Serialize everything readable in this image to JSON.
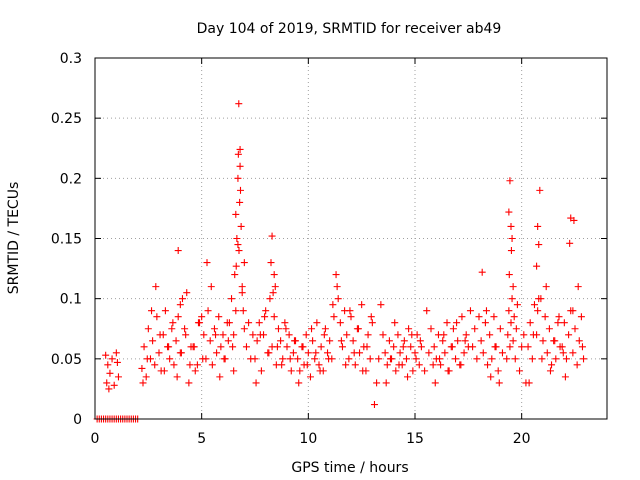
{
  "chart_data": {
    "type": "scatter",
    "title": "Day 104 of 2019, SRMTID for receiver ab49",
    "xlabel": "GPS time / hours",
    "ylabel": "SRMTID / TECUs",
    "xlim": [
      0,
      24
    ],
    "ylim": [
      0,
      0.3
    ],
    "x_ticks": [
      0,
      5,
      10,
      15,
      20
    ],
    "y_ticks": [
      0,
      0.05,
      0.1,
      0.15,
      0.2,
      0.25,
      0.3
    ],
    "grid": true,
    "marker": "+",
    "series": [
      {
        "name": "SRMTID",
        "color": "#ff0000",
        "x": [
          0.1,
          0.2,
          0.3,
          0.4,
          0.5,
          0.6,
          0.7,
          0.8,
          0.9,
          1.0,
          1.1,
          1.2,
          1.3,
          1.4,
          1.5,
          1.6,
          1.7,
          1.8,
          1.9,
          2.0,
          0.5,
          0.55,
          0.6,
          0.65,
          0.7,
          0.8,
          0.9,
          1.0,
          1.05,
          1.1,
          2.2,
          2.3,
          2.4,
          2.5,
          2.6,
          2.7,
          2.8,
          2.9,
          3.0,
          3.1,
          3.2,
          3.3,
          3.4,
          3.5,
          3.6,
          3.7,
          3.8,
          3.9,
          4.0,
          4.1,
          2.25,
          2.45,
          2.65,
          2.85,
          3.05,
          3.25,
          3.45,
          3.65,
          3.85,
          4.05,
          4.25,
          4.45,
          4.65,
          4.85,
          5.05,
          3.9,
          4.0,
          4.2,
          4.3,
          4.5,
          4.7,
          4.9,
          5.1,
          5.2,
          5.3,
          5.4,
          5.5,
          5.6,
          5.7,
          5.8,
          5.9,
          6.0,
          6.1,
          6.2,
          4.4,
          4.6,
          4.8,
          5.0,
          5.25,
          5.45,
          5.65,
          5.85,
          6.05,
          6.25,
          6.3,
          6.4,
          6.5,
          6.55,
          6.6,
          6.65,
          6.7,
          6.72,
          6.75,
          6.78,
          6.8,
          6.85,
          6.9,
          6.95,
          7.0,
          7.1,
          7.2,
          7.3,
          7.4,
          6.5,
          6.6,
          6.7,
          6.8,
          6.9,
          7.0,
          6.45,
          6.62,
          6.74,
          6.82,
          7.5,
          7.6,
          7.7,
          7.8,
          7.9,
          8.0,
          8.1,
          8.2,
          8.3,
          8.4,
          8.5,
          8.6,
          8.7,
          8.8,
          8.9,
          9.0,
          9.1,
          9.2,
          9.3,
          9.4,
          7.55,
          7.75,
          7.95,
          8.15,
          8.35,
          8.55,
          8.75,
          8.95,
          9.15,
          9.35,
          8.3,
          8.4,
          8.25,
          8.45,
          9.5,
          9.6,
          9.7,
          9.8,
          9.9,
          10.0,
          10.1,
          10.2,
          10.3,
          10.4,
          10.5,
          10.6,
          10.7,
          10.8,
          10.9,
          11.0,
          11.1,
          11.2,
          9.55,
          9.75,
          9.95,
          10.15,
          10.35,
          10.55,
          10.75,
          10.95,
          11.15,
          11.3,
          11.4,
          11.5,
          11.6,
          11.7,
          11.8,
          11.9,
          12.0,
          12.1,
          12.2,
          12.3,
          12.4,
          12.5,
          12.6,
          12.7,
          12.8,
          12.9,
          13.0,
          11.35,
          11.55,
          11.75,
          11.95,
          12.15,
          12.35,
          12.55,
          12.75,
          12.95,
          13.1,
          13.2,
          13.3,
          13.4,
          13.5,
          13.6,
          13.7,
          13.8,
          13.9,
          14.0,
          14.1,
          14.2,
          14.3,
          14.4,
          14.5,
          14.6,
          14.7,
          14.8,
          14.9,
          15.0,
          15.1,
          15.2,
          15.3,
          13.65,
          13.85,
          14.05,
          14.25,
          14.45,
          14.65,
          14.85,
          15.05,
          15.25,
          15.45,
          15.55,
          15.65,
          15.75,
          15.85,
          15.9,
          16.0,
          16.1,
          16.2,
          16.3,
          16.4,
          16.5,
          16.6,
          16.7,
          16.8,
          16.9,
          17.0,
          17.1,
          17.2,
          17.3,
          17.4,
          17.5,
          15.95,
          16.15,
          16.35,
          16.55,
          16.75,
          16.95,
          17.15,
          17.35,
          17.6,
          17.7,
          17.8,
          17.9,
          18.0,
          18.1,
          18.2,
          18.3,
          18.4,
          18.5,
          18.6,
          18.7,
          18.8,
          18.9,
          19.0,
          19.1,
          18.15,
          18.35,
          18.55,
          18.75,
          18.95,
          19.3,
          19.35,
          19.4,
          19.45,
          19.5,
          19.55,
          19.6,
          19.65,
          19.7,
          19.75,
          19.8,
          19.9,
          20.0,
          20.1,
          20.2,
          19.4,
          19.45,
          19.5,
          19.55,
          19.6,
          19.42,
          19.52,
          20.3,
          20.4,
          20.5,
          20.6,
          20.7,
          20.75,
          20.8,
          20.85,
          20.9,
          21.0,
          21.1,
          21.2,
          21.3,
          21.4,
          21.5,
          21.6,
          21.7,
          21.8,
          20.35,
          20.55,
          20.75,
          20.95,
          21.15,
          21.35,
          21.55,
          21.75,
          21.95,
          20.7,
          20.8,
          21.9,
          22.0,
          22.1,
          22.2,
          22.3,
          22.4,
          22.5,
          22.6,
          22.7,
          22.8,
          22.9,
          22.05,
          22.25,
          22.45,
          22.65,
          22.85,
          22.3,
          22.4
        ],
        "y": [
          0.0,
          0.0,
          0.0,
          0.0,
          0.0,
          0.0,
          0.0,
          0.0,
          0.0,
          0.0,
          0.0,
          0.0,
          0.0,
          0.0,
          0.0,
          0.0,
          0.0,
          0.0,
          0.0,
          0.0,
          0.053,
          0.03,
          0.045,
          0.025,
          0.038,
          0.05,
          0.028,
          0.055,
          0.047,
          0.035,
          0.042,
          0.06,
          0.035,
          0.075,
          0.05,
          0.065,
          0.045,
          0.085,
          0.055,
          0.04,
          0.07,
          0.09,
          0.06,
          0.05,
          0.075,
          0.045,
          0.065,
          0.085,
          0.055,
          0.1,
          0.03,
          0.05,
          0.09,
          0.11,
          0.07,
          0.04,
          0.06,
          0.08,
          0.035,
          0.055,
          0.07,
          0.045,
          0.06,
          0.08,
          0.05,
          0.14,
          0.095,
          0.075,
          0.105,
          0.06,
          0.04,
          0.08,
          0.07,
          0.05,
          0.09,
          0.065,
          0.045,
          0.075,
          0.055,
          0.085,
          0.06,
          0.07,
          0.05,
          0.08,
          0.03,
          0.06,
          0.045,
          0.085,
          0.13,
          0.11,
          0.07,
          0.035,
          0.05,
          0.065,
          0.08,
          0.1,
          0.07,
          0.12,
          0.17,
          0.15,
          0.2,
          0.22,
          0.14,
          0.18,
          0.21,
          0.16,
          0.11,
          0.09,
          0.13,
          0.06,
          0.08,
          0.05,
          0.07,
          0.04,
          0.09,
          0.145,
          0.224,
          0.105,
          0.075,
          0.06,
          0.127,
          0.262,
          0.19,
          0.05,
          0.065,
          0.08,
          0.04,
          0.07,
          0.09,
          0.055,
          0.1,
          0.06,
          0.085,
          0.045,
          0.075,
          0.065,
          0.05,
          0.08,
          0.06,
          0.07,
          0.04,
          0.055,
          0.065,
          0.03,
          0.07,
          0.085,
          0.055,
          0.105,
          0.06,
          0.045,
          0.075,
          0.05,
          0.065,
          0.152,
          0.12,
          0.13,
          0.11,
          0.05,
          0.04,
          0.06,
          0.045,
          0.07,
          0.055,
          0.035,
          0.065,
          0.05,
          0.08,
          0.045,
          0.06,
          0.04,
          0.075,
          0.055,
          0.065,
          0.05,
          0.085,
          0.03,
          0.06,
          0.045,
          0.075,
          0.055,
          0.04,
          0.07,
          0.05,
          0.095,
          0.12,
          0.1,
          0.08,
          0.06,
          0.09,
          0.07,
          0.05,
          0.085,
          0.065,
          0.045,
          0.075,
          0.055,
          0.095,
          0.06,
          0.04,
          0.07,
          0.05,
          0.08,
          0.11,
          0.065,
          0.045,
          0.09,
          0.055,
          0.075,
          0.04,
          0.06,
          0.085,
          0.012,
          0.03,
          0.05,
          0.095,
          0.07,
          0.055,
          0.045,
          0.065,
          0.05,
          0.06,
          0.04,
          0.07,
          0.055,
          0.045,
          0.065,
          0.05,
          0.075,
          0.06,
          0.04,
          0.055,
          0.07,
          0.045,
          0.06,
          0.03,
          0.05,
          0.08,
          0.045,
          0.06,
          0.035,
          0.07,
          0.05,
          0.065,
          0.04,
          0.09,
          0.055,
          0.075,
          0.045,
          0.06,
          0.05,
          0.07,
          0.045,
          0.065,
          0.055,
          0.08,
          0.04,
          0.06,
          0.075,
          0.05,
          0.065,
          0.045,
          0.085,
          0.055,
          0.07,
          0.06,
          0.03,
          0.05,
          0.07,
          0.04,
          0.06,
          0.08,
          0.045,
          0.065,
          0.09,
          0.06,
          0.075,
          0.05,
          0.085,
          0.065,
          0.055,
          0.08,
          0.045,
          0.07,
          0.05,
          0.085,
          0.06,
          0.04,
          0.075,
          0.055,
          0.122,
          0.09,
          0.035,
          0.06,
          0.03,
          0.05,
          0.07,
          0.09,
          0.06,
          0.08,
          0.1,
          0.065,
          0.085,
          0.05,
          0.075,
          0.095,
          0.04,
          0.06,
          0.07,
          0.03,
          0.172,
          0.198,
          0.16,
          0.15,
          0.11,
          0.12,
          0.14,
          0.06,
          0.08,
          0.05,
          0.095,
          0.07,
          0.16,
          0.145,
          0.19,
          0.1,
          0.065,
          0.085,
          0.055,
          0.075,
          0.045,
          0.065,
          0.05,
          0.08,
          0.06,
          0.03,
          0.07,
          0.09,
          0.05,
          0.11,
          0.04,
          0.065,
          0.085,
          0.055,
          0.127,
          0.1,
          0.06,
          0.08,
          0.05,
          0.07,
          0.09,
          0.055,
          0.075,
          0.045,
          0.065,
          0.085,
          0.05,
          0.035,
          0.146,
          0.165,
          0.11,
          0.06,
          0.167,
          0.09
        ]
      }
    ]
  }
}
